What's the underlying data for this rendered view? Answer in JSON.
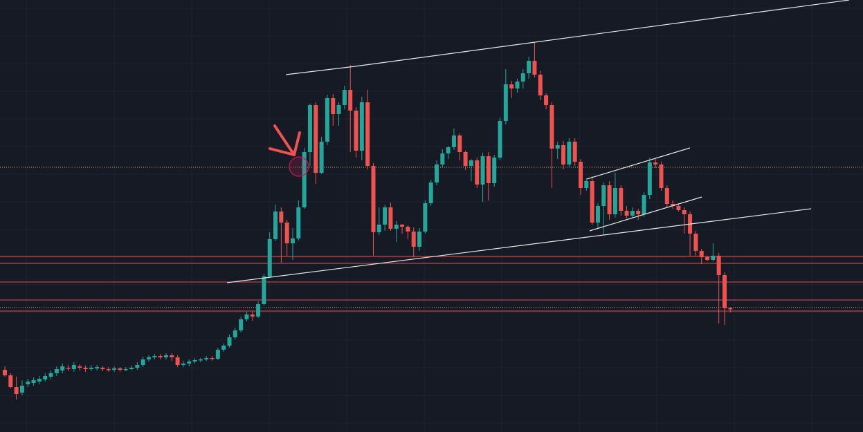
{
  "colors": {
    "background": "#161a25",
    "grid": "#1f2433",
    "up": "#26a69a",
    "down": "#ef5350",
    "trendline": "#e8e8e8",
    "support_line": "#e84b4b",
    "price_marker_dotted": "#c9b458",
    "annotation": "#ef5350"
  },
  "chart_data": {
    "type": "candlestick",
    "title": "",
    "xlabel": "",
    "ylabel": "",
    "x_range": [
      0,
      156
    ],
    "ylim": [
      0,
      625
    ],
    "grid": true,
    "candles": [
      [
        0,
        535,
        543,
        530,
        545
      ],
      [
        1,
        543,
        560,
        540,
        562
      ],
      [
        2,
        560,
        570,
        545,
        578
      ],
      [
        3,
        568,
        558,
        550,
        572
      ],
      [
        4,
        556,
        552,
        548,
        560
      ],
      [
        5,
        554,
        550,
        546,
        558
      ],
      [
        6,
        552,
        548,
        544,
        556
      ],
      [
        7,
        549,
        544,
        540,
        552
      ],
      [
        8,
        545,
        540,
        536,
        549
      ],
      [
        9,
        540,
        534,
        530,
        544
      ],
      [
        10,
        536,
        530,
        526,
        540
      ],
      [
        11,
        532,
        533,
        528,
        537
      ],
      [
        12,
        534,
        528,
        524,
        538
      ],
      [
        13,
        530,
        532,
        527,
        536
      ],
      [
        14,
        532,
        534,
        529,
        538
      ],
      [
        15,
        534,
        532,
        528,
        537
      ],
      [
        16,
        533,
        531,
        528,
        536
      ],
      [
        17,
        532,
        534,
        530,
        537
      ],
      [
        18,
        534,
        535,
        531,
        538
      ],
      [
        19,
        535,
        533,
        530,
        538
      ],
      [
        20,
        533,
        535,
        531,
        538
      ],
      [
        21,
        535,
        534,
        531,
        537
      ],
      [
        22,
        534,
        532,
        529,
        536
      ],
      [
        23,
        532,
        528,
        524,
        535
      ],
      [
        24,
        528,
        520,
        516,
        531
      ],
      [
        25,
        520,
        517,
        514,
        523
      ],
      [
        26,
        517,
        515,
        512,
        520
      ],
      [
        27,
        515,
        517,
        512,
        520
      ],
      [
        28,
        517,
        514,
        511,
        520
      ],
      [
        29,
        514,
        517,
        511,
        522
      ],
      [
        30,
        517,
        528,
        514,
        531
      ],
      [
        31,
        528,
        526,
        522,
        531
      ],
      [
        32,
        526,
        523,
        520,
        530
      ],
      [
        33,
        523,
        521,
        518,
        526
      ],
      [
        34,
        521,
        520,
        518,
        524
      ],
      [
        35,
        520,
        518,
        515,
        522
      ],
      [
        36,
        518,
        519,
        515,
        522
      ],
      [
        37,
        519,
        506,
        503,
        521
      ],
      [
        38,
        506,
        500,
        497,
        509
      ],
      [
        39,
        500,
        488,
        484,
        503
      ],
      [
        40,
        488,
        478,
        474,
        491
      ],
      [
        41,
        478,
        462,
        458,
        481
      ],
      [
        42,
        462,
        455,
        451,
        465
      ],
      [
        43,
        455,
        458,
        450,
        464
      ],
      [
        44,
        458,
        440,
        436,
        460
      ],
      [
        45,
        440,
        400,
        396,
        442
      ],
      [
        46,
        400,
        346,
        336,
        402
      ],
      [
        47,
        346,
        306,
        296,
        349
      ],
      [
        48,
        306,
        322,
        300,
        380
      ],
      [
        49,
        322,
        352,
        318,
        370
      ],
      [
        50,
        352,
        345,
        330,
        376
      ],
      [
        51,
        345,
        300,
        290,
        348
      ],
      [
        52,
        300,
        220,
        214,
        302
      ],
      [
        53,
        220,
        152,
        150,
        240
      ],
      [
        54,
        152,
        250,
        148,
        266
      ],
      [
        55,
        250,
        205,
        198,
        252
      ],
      [
        56,
        205,
        142,
        137,
        210
      ],
      [
        57,
        142,
        165,
        136,
        182
      ],
      [
        58,
        165,
        152,
        148,
        182
      ],
      [
        59,
        152,
        130,
        124,
        158
      ],
      [
        60,
        130,
        160,
        94,
        220
      ],
      [
        61,
        160,
        218,
        155,
        228
      ],
      [
        62,
        218,
        148,
        140,
        232
      ],
      [
        63,
        148,
        240,
        130,
        245
      ],
      [
        64,
        240,
        336,
        236,
        370
      ],
      [
        65,
        336,
        325,
        300,
        340
      ],
      [
        66,
        325,
        300,
        296,
        334
      ],
      [
        67,
        300,
        331,
        293,
        334
      ],
      [
        68,
        331,
        325,
        320,
        350
      ],
      [
        69,
        325,
        328,
        324,
        338
      ],
      [
        70,
        328,
        335,
        326,
        346
      ],
      [
        71,
        335,
        357,
        329,
        372
      ],
      [
        72,
        357,
        335,
        330,
        363
      ],
      [
        73,
        335,
        294,
        290,
        338
      ],
      [
        74,
        294,
        264,
        260,
        298
      ],
      [
        75,
        264,
        238,
        232,
        268
      ],
      [
        76,
        238,
        222,
        216,
        242
      ],
      [
        77,
        222,
        213,
        211,
        230
      ],
      [
        78,
        213,
        196,
        186,
        217
      ],
      [
        79,
        196,
        220,
        193,
        232
      ],
      [
        80,
        220,
        240,
        218,
        246
      ],
      [
        81,
        240,
        232,
        230,
        262
      ],
      [
        82,
        232,
        267,
        228,
        272
      ],
      [
        83,
        267,
        226,
        221,
        292
      ],
      [
        84,
        226,
        265,
        220,
        290
      ],
      [
        85,
        265,
        228,
        224,
        270
      ],
      [
        86,
        228,
        175,
        170,
        232
      ],
      [
        87,
        175,
        122,
        100,
        180
      ],
      [
        88,
        122,
        128,
        117,
        142
      ],
      [
        89,
        128,
        118,
        114,
        134
      ],
      [
        90,
        118,
        106,
        100,
        128
      ],
      [
        91,
        106,
        88,
        82,
        114
      ],
      [
        92,
        88,
        108,
        62,
        112
      ],
      [
        93,
        108,
        138,
        102,
        145
      ],
      [
        94,
        138,
        152,
        135,
        158
      ],
      [
        95,
        152,
        215,
        148,
        272
      ],
      [
        96,
        215,
        210,
        205,
        230
      ],
      [
        97,
        210,
        238,
        204,
        245
      ],
      [
        98,
        238,
        205,
        200,
        242
      ],
      [
        99,
        205,
        234,
        200,
        240
      ],
      [
        100,
        234,
        272,
        230,
        282
      ],
      [
        101,
        272,
        262,
        258,
        276
      ],
      [
        102,
        262,
        322,
        255,
        325
      ],
      [
        103,
        322,
        298,
        294,
        330
      ],
      [
        104,
        298,
        268,
        264,
        340
      ],
      [
        105,
        268,
        310,
        262,
        318
      ],
      [
        106,
        310,
        272,
        250,
        315
      ],
      [
        107,
        272,
        305,
        268,
        312
      ],
      [
        108,
        305,
        312,
        298,
        316
      ],
      [
        109,
        312,
        305,
        300,
        316
      ],
      [
        110,
        305,
        310,
        302,
        318
      ],
      [
        111,
        310,
        282,
        278,
        314
      ],
      [
        112,
        282,
        235,
        228,
        288
      ],
      [
        113,
        235,
        238,
        230,
        243
      ],
      [
        114,
        238,
        272,
        234,
        276
      ],
      [
        115,
        272,
        295,
        268,
        300
      ],
      [
        116,
        295,
        298,
        290,
        302
      ],
      [
        117,
        298,
        304,
        294,
        306
      ],
      [
        118,
        304,
        310,
        300,
        338
      ],
      [
        119,
        310,
        338,
        306,
        370
      ],
      [
        120,
        338,
        363,
        334,
        370
      ],
      [
        121,
        363,
        372,
        360,
        382
      ],
      [
        122,
        372,
        376,
        370,
        378
      ],
      [
        123,
        376,
        370,
        352,
        378
      ],
      [
        124,
        370,
        398,
        366,
        468
      ],
      [
        125,
        398,
        446,
        394,
        470
      ],
      [
        126,
        446,
        446,
        444,
        452
      ]
    ],
    "trendlines": [
      [
        413,
        108,
        513,
        96
      ],
      [
        513,
        96,
        1227,
        0
      ],
      [
        328,
        409,
        1172,
        302
      ],
      [
        848,
        259,
        997,
        214
      ],
      [
        852,
        334,
        1014,
        285
      ]
    ],
    "horizontal_levels": [
      371,
      381,
      408,
      434,
      450
    ],
    "dotted_levels": [
      242,
      445
    ],
    "annotation": {
      "arrow": {
        "x1": 397,
        "y1": 182,
        "x2": 425,
        "y2": 224
      },
      "circle": {
        "cx": 432,
        "cy": 241,
        "r": 14
      }
    }
  }
}
